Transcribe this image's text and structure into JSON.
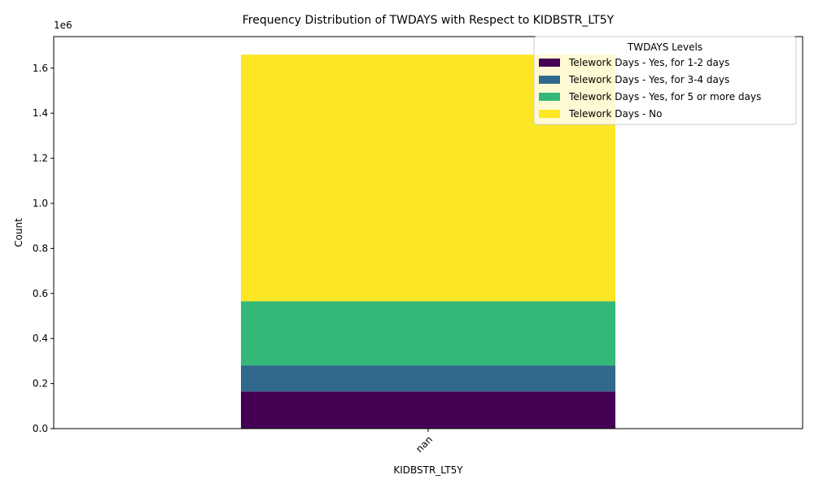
{
  "chart_data": {
    "type": "bar",
    "stacked": true,
    "title": "Frequency Distribution of TWDAYS with Respect to KIDBSTR_LT5Y",
    "xlabel": "KIDBSTR_LT5Y",
    "ylabel": "Count",
    "y_offset_label": "1e6",
    "categories": [
      "nan"
    ],
    "ylim": [
      0,
      1740000
    ],
    "yticks": [
      0,
      200000,
      400000,
      600000,
      800000,
      1000000,
      1200000,
      1400000,
      1600000
    ],
    "ytick_labels": [
      "0.0",
      "0.2",
      "0.4",
      "0.6",
      "0.8",
      "1.0",
      "1.2",
      "1.4",
      "1.6"
    ],
    "legend_title": "TWDAYS Levels",
    "legend_position": "top-right",
    "grid": false,
    "series": [
      {
        "name": "Telework Days - Yes, for 1-2 days",
        "color": "#440154",
        "values": [
          165000
        ]
      },
      {
        "name": "Telework Days - Yes, for 3-4 days",
        "color": "#31688e",
        "values": [
          115000
        ]
      },
      {
        "name": "Telework Days - Yes, for 5 or more days",
        "color": "#35b779",
        "values": [
          285000
        ]
      },
      {
        "name": "Telework Days - No",
        "color": "#fde725",
        "values": [
          1095000
        ]
      }
    ]
  }
}
